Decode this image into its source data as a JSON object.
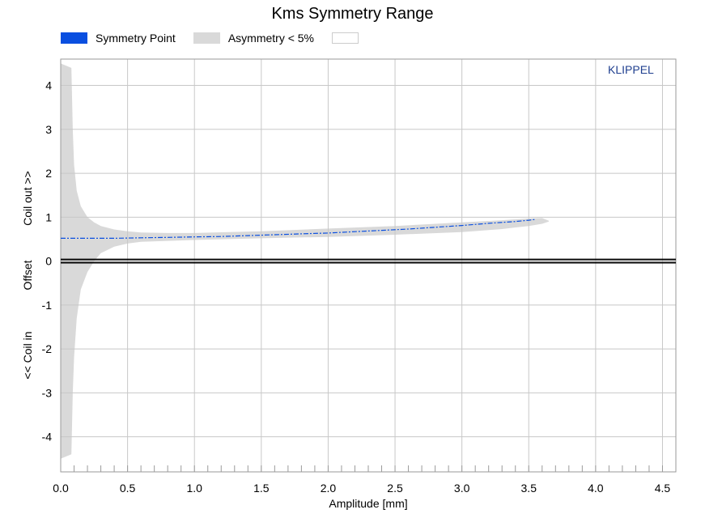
{
  "chart_data": {
    "type": "area",
    "title": "Kms Symmetry Range",
    "xlabel": "Amplitude [mm]",
    "ylabel_parts": [
      "Coil out >>",
      "Offset",
      "<< Coil in"
    ],
    "brand": "KLIPPEL",
    "xlim": [
      0,
      4.6
    ],
    "ylim": [
      -4.8,
      4.6
    ],
    "xticks": [
      0.0,
      0.5,
      1.0,
      1.5,
      2.0,
      2.5,
      3.0,
      3.5,
      4.0,
      4.5
    ],
    "xtick_labels": [
      "0.0",
      "0.5",
      "1.0",
      "1.5",
      "2.0",
      "2.5",
      "3.0",
      "3.5",
      "4.0",
      "4.5"
    ],
    "yticks": [
      -4,
      -3,
      -2,
      -1,
      0,
      1,
      2,
      3,
      4
    ],
    "ytick_labels": [
      "-4",
      "-3",
      "-2",
      "-1",
      "0",
      "1",
      "2",
      "3",
      "4"
    ],
    "grid": true,
    "legend_position": "top",
    "series": [
      {
        "name": "Symmetry Point",
        "color": "#0a4fe0",
        "kind": "line",
        "x": [
          0.0,
          0.1,
          0.2,
          0.4,
          0.6,
          0.8,
          1.0,
          1.2,
          1.4,
          1.6,
          1.8,
          2.0,
          2.2,
          2.4,
          2.6,
          2.8,
          3.0,
          3.2,
          3.4,
          3.5,
          3.55
        ],
        "y": [
          0.52,
          0.52,
          0.52,
          0.52,
          0.53,
          0.54,
          0.55,
          0.56,
          0.58,
          0.6,
          0.62,
          0.64,
          0.67,
          0.7,
          0.73,
          0.77,
          0.81,
          0.86,
          0.9,
          0.93,
          0.95
        ]
      },
      {
        "name": "Asymmetry < 5%",
        "color": "#d9d9d9",
        "kind": "band",
        "x": [
          0.0,
          0.08,
          0.09,
          0.1,
          0.12,
          0.15,
          0.2,
          0.25,
          0.3,
          0.4,
          0.5,
          0.6,
          0.8,
          1.0,
          1.5,
          2.0,
          2.5,
          3.0,
          3.3,
          3.5,
          3.6,
          3.65
        ],
        "upper": [
          4.5,
          4.4,
          3.0,
          2.2,
          1.6,
          1.25,
          1.0,
          0.88,
          0.8,
          0.72,
          0.68,
          0.65,
          0.64,
          0.64,
          0.68,
          0.74,
          0.8,
          0.88,
          0.93,
          0.97,
          0.98,
          0.92
        ],
        "lower": [
          -4.5,
          -4.4,
          -3.0,
          -2.2,
          -1.3,
          -0.65,
          -0.25,
          0.0,
          0.18,
          0.33,
          0.4,
          0.44,
          0.46,
          0.48,
          0.52,
          0.55,
          0.6,
          0.66,
          0.73,
          0.8,
          0.85,
          0.9
        ]
      }
    ],
    "reference_line": {
      "y": 0,
      "color": "#000000"
    }
  },
  "legend_items": [
    {
      "label": "Symmetry Point",
      "color": "#0a4fe0"
    },
    {
      "label": "Asymmetry < 5%",
      "color": "#d9d9d9"
    },
    {
      "label": "",
      "color": "#ffffff"
    }
  ]
}
